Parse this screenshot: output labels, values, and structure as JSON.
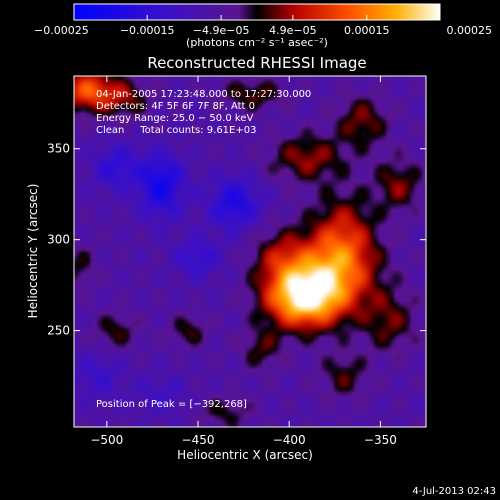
{
  "chart_data": {
    "type": "heatmap",
    "title": "Reconstructed RHESSI Image",
    "xlabel": "Heliocentric X (arcsec)",
    "ylabel": "Heliocentric Y (arcsec)",
    "xlim": [
      -518,
      -325
    ],
    "ylim": [
      197,
      390
    ],
    "xticks": [
      -500,
      -450,
      -400,
      -350
    ],
    "yticks": [
      250,
      300,
      350
    ],
    "xtick_labels": [
      "−500",
      "−450",
      "−400",
      "−350"
    ],
    "ytick_labels": [
      "250",
      "300",
      "350"
    ],
    "colorbar": {
      "range": [
        -0.00025,
        0.00025
      ],
      "ticks": [
        -0.00025,
        -0.00015,
        -4.9e-05,
        4.9e-05,
        0.00015,
        0.00025
      ],
      "tick_labels": [
        "−0.00025",
        "−0.00015",
        "−4.9e−05",
        "4.9e−05",
        "0.00015",
        "0.00025"
      ],
      "units": "(photons cm⁻² s⁻¹ asec⁻²)"
    },
    "header_lines": [
      "04-Jan-2005 17:23:48.000 to 17:27:30.000",
      "Detectors: 4F 5F 6F 7F 8F, Att 0",
      "Energy Range: 25.0 − 50.0 keV",
      "Clean     Total counts: 9.61E+03"
    ],
    "peak_label": "Position of Peak = [−392,268]",
    "peak": {
      "x": -392,
      "y": 268
    },
    "sources": [
      {
        "x": -393,
        "y": 268,
        "value": 0.00025,
        "sx": 14,
        "sy": 11
      },
      {
        "x": -380,
        "y": 280,
        "value": 0.00017,
        "sx": 18,
        "sy": 16
      },
      {
        "x": -370,
        "y": 300,
        "value": 0.00012,
        "sx": 12,
        "sy": 18
      },
      {
        "x": -405,
        "y": 290,
        "value": 8e-05,
        "sx": 10,
        "sy": 10
      },
      {
        "x": -510,
        "y": 382,
        "value": 0.00018,
        "sx": 10,
        "sy": 8
      },
      {
        "x": -490,
        "y": 378,
        "value": 9e-05,
        "sx": 9,
        "sy": 7
      },
      {
        "x": -390,
        "y": 345,
        "value": 0.0001,
        "sx": 14,
        "sy": 9
      },
      {
        "x": -360,
        "y": 365,
        "value": 9e-05,
        "sx": 10,
        "sy": 10
      },
      {
        "x": -420,
        "y": 380,
        "value": 8e-05,
        "sx": 12,
        "sy": 6
      },
      {
        "x": -340,
        "y": 330,
        "value": 9e-05,
        "sx": 9,
        "sy": 10
      },
      {
        "x": -345,
        "y": 255,
        "value": 8e-05,
        "sx": 10,
        "sy": 12
      },
      {
        "x": -370,
        "y": 225,
        "value": 7e-05,
        "sx": 9,
        "sy": 9
      },
      {
        "x": -415,
        "y": 240,
        "value": 7e-05,
        "sx": 8,
        "sy": 8
      },
      {
        "x": -455,
        "y": 250,
        "value": 7e-05,
        "sx": 7,
        "sy": 6
      },
      {
        "x": -495,
        "y": 250,
        "value": 7e-05,
        "sx": 8,
        "sy": 7
      },
      {
        "x": -515,
        "y": 285,
        "value": 6e-05,
        "sx": 6,
        "sy": 8
      },
      {
        "x": -435,
        "y": 205,
        "value": 6e-05,
        "sx": 10,
        "sy": 6
      },
      {
        "x": -470,
        "y": 330,
        "value": -0.00014,
        "sx": 9,
        "sy": 12
      },
      {
        "x": -430,
        "y": 320,
        "value": -0.00012,
        "sx": 10,
        "sy": 10
      },
      {
        "x": -495,
        "y": 340,
        "value": -9e-05,
        "sx": 9,
        "sy": 9
      },
      {
        "x": -450,
        "y": 290,
        "value": -8e-05,
        "sx": 9,
        "sy": 8
      },
      {
        "x": -505,
        "y": 225,
        "value": -6e-05,
        "sx": 10,
        "sy": 9
      },
      {
        "x": -470,
        "y": 215,
        "value": -5e-05,
        "sx": 10,
        "sy": 8
      }
    ]
  },
  "footer_date": "4-Jul-2013 02:43"
}
